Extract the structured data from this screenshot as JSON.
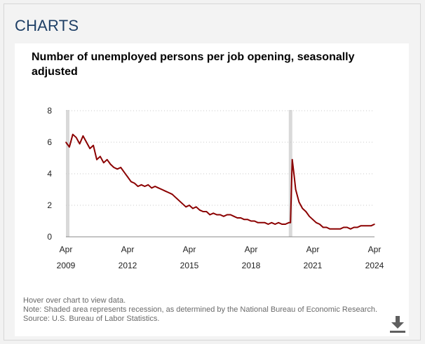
{
  "section_title": "CHARTS",
  "notes": {
    "hover": "Hover over chart to view data.",
    "note": "Note: Shaded area represents recession, as determined by the National Bureau of Economic Research.",
    "source": "Source: U.S. Bureau of Labor Statistics."
  },
  "download_icon": "download-icon",
  "chart_data": {
    "type": "line",
    "title": "Number of unemployed persons per job opening, seasonally adjusted",
    "xlabel": "",
    "ylabel": "",
    "ylim": [
      0,
      8
    ],
    "yticks": [
      0,
      2,
      4,
      6,
      8
    ],
    "xticks": [
      {
        "month": "Apr",
        "year": "2009"
      },
      {
        "month": "Apr",
        "year": "2012"
      },
      {
        "month": "Apr",
        "year": "2015"
      },
      {
        "month": "Apr",
        "year": "2018"
      },
      {
        "month": "Apr",
        "year": "2021"
      },
      {
        "month": "Apr",
        "year": "2024"
      }
    ],
    "grid": true,
    "line_color": "#8b0000",
    "recession_color": "#d9d9d9",
    "recessions": [
      {
        "start": "2009-04",
        "end": "2009-06"
      },
      {
        "start": "2020-02",
        "end": "2020-04"
      }
    ],
    "series": [
      {
        "x": [
          "2009-04",
          "2009-06",
          "2009-08",
          "2009-10",
          "2009-12",
          "2010-02",
          "2010-04",
          "2010-06",
          "2010-08",
          "2010-10",
          "2010-12",
          "2011-02",
          "2011-04",
          "2011-06",
          "2011-08",
          "2011-10",
          "2011-12",
          "2012-02",
          "2012-04",
          "2012-06",
          "2012-08",
          "2012-10",
          "2012-12",
          "2013-02",
          "2013-04",
          "2013-06",
          "2013-08",
          "2013-10",
          "2013-12",
          "2014-02",
          "2014-04",
          "2014-06",
          "2014-08",
          "2014-10",
          "2014-12",
          "2015-02",
          "2015-04",
          "2015-06",
          "2015-08",
          "2015-10",
          "2015-12",
          "2016-02",
          "2016-04",
          "2016-06",
          "2016-08",
          "2016-10",
          "2016-12",
          "2017-02",
          "2017-04",
          "2017-06",
          "2017-08",
          "2017-10",
          "2017-12",
          "2018-02",
          "2018-04",
          "2018-06",
          "2018-08",
          "2018-10",
          "2018-12",
          "2019-02",
          "2019-04",
          "2019-06",
          "2019-08",
          "2019-10",
          "2019-12",
          "2020-02",
          "2020-03",
          "2020-04",
          "2020-05",
          "2020-06",
          "2020-08",
          "2020-10",
          "2020-12",
          "2021-02",
          "2021-04",
          "2021-06",
          "2021-08",
          "2021-10",
          "2021-12",
          "2022-02",
          "2022-04",
          "2022-06",
          "2022-08",
          "2022-10",
          "2022-12",
          "2023-02",
          "2023-04",
          "2023-06",
          "2023-08",
          "2023-10",
          "2023-12",
          "2024-02",
          "2024-04"
        ],
        "y": [
          6.0,
          5.7,
          6.5,
          6.3,
          5.9,
          6.4,
          6.0,
          5.6,
          5.8,
          4.9,
          5.1,
          4.7,
          4.9,
          4.6,
          4.4,
          4.3,
          4.4,
          4.1,
          3.8,
          3.5,
          3.4,
          3.2,
          3.3,
          3.2,
          3.3,
          3.1,
          3.2,
          3.1,
          3.0,
          2.9,
          2.8,
          2.7,
          2.5,
          2.3,
          2.1,
          1.9,
          2.0,
          1.8,
          1.9,
          1.7,
          1.6,
          1.6,
          1.4,
          1.5,
          1.4,
          1.4,
          1.3,
          1.4,
          1.4,
          1.3,
          1.2,
          1.2,
          1.1,
          1.1,
          1.0,
          1.0,
          0.9,
          0.9,
          0.9,
          0.8,
          0.9,
          0.8,
          0.9,
          0.8,
          0.8,
          0.9,
          0.9,
          4.9,
          4.0,
          3.0,
          2.2,
          1.8,
          1.6,
          1.3,
          1.1,
          0.9,
          0.8,
          0.6,
          0.6,
          0.5,
          0.5,
          0.5,
          0.5,
          0.6,
          0.6,
          0.5,
          0.6,
          0.6,
          0.7,
          0.7,
          0.7,
          0.7,
          0.8
        ]
      }
    ]
  }
}
